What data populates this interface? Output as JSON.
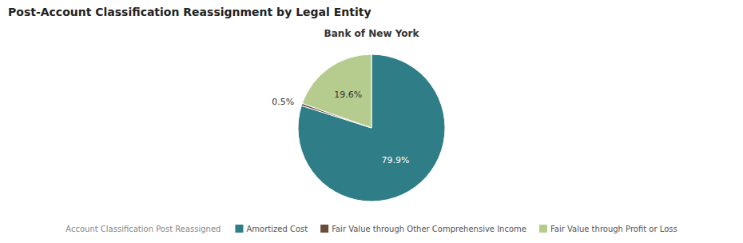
{
  "chart_data": {
    "type": "pie",
    "title": "Post-Account Classification Reassignment by Legal Entity",
    "subtitle": "Bank of New York",
    "legend_title": "Account Classification Post Reassigned",
    "categories": [
      "Amortized Cost",
      "Fair Value through Other Comprehensive Income",
      "Fair Value through Profit or Loss"
    ],
    "values": [
      79.9,
      0.5,
      19.6
    ],
    "value_labels": [
      "79.9%",
      "0.5%",
      "19.6%"
    ],
    "colors": [
      "#2e7d87",
      "#6b4c3b",
      "#b5cc8e"
    ],
    "data_labels": true,
    "legend": "bottom"
  }
}
